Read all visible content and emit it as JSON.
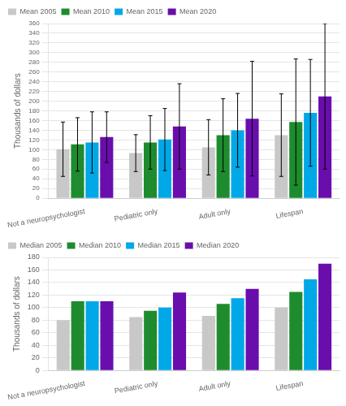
{
  "chart_data": [
    {
      "type": "bar",
      "categories": [
        "Not a neuropsychologist",
        "Pediatric only",
        "Adult only",
        "Lifespan"
      ],
      "series": [
        {
          "name": "Mean 2005",
          "color": "#c8c8c8",
          "values": [
            101,
            93,
            105,
            130
          ],
          "errors": [
            56,
            38,
            57,
            85
          ]
        },
        {
          "name": "Mean 2010",
          "color": "#1e8c2e",
          "values": [
            111,
            115,
            130,
            157
          ],
          "errors": [
            55,
            55,
            75,
            130
          ]
        },
        {
          "name": "Mean 2015",
          "color": "#00a8e8",
          "values": [
            115,
            121,
            140,
            176
          ],
          "errors": [
            63,
            64,
            76,
            110
          ]
        },
        {
          "name": "Mean 2020",
          "color": "#6a0dad",
          "values": [
            126,
            148,
            164,
            210
          ],
          "errors": [
            52,
            88,
            118,
            150
          ]
        }
      ],
      "ylabel": "Thousands of dollars",
      "ylim": [
        0,
        360
      ],
      "yticks": [
        0,
        20,
        40,
        60,
        80,
        100,
        120,
        140,
        160,
        180,
        200,
        220,
        240,
        260,
        280,
        300,
        320,
        340,
        360
      ],
      "grid": true,
      "legend": "upper left"
    },
    {
      "type": "bar",
      "categories": [
        "Not a neuropsychologist",
        "Pediatric only",
        "Adult only",
        "Lifespan"
      ],
      "series": [
        {
          "name": "Median 2005",
          "color": "#c8c8c8",
          "values": [
            80,
            85,
            87,
            100
          ]
        },
        {
          "name": "Median 2010",
          "color": "#1e8c2e",
          "values": [
            110,
            95,
            106,
            125
          ]
        },
        {
          "name": "Median 2015",
          "color": "#00a8e8",
          "values": [
            110,
            100,
            115,
            145
          ]
        },
        {
          "name": "Median 2020",
          "color": "#6a0dad",
          "values": [
            110,
            124,
            130,
            170
          ]
        }
      ],
      "ylabel": "Thousands of dollars",
      "ylim": [
        0,
        180
      ],
      "yticks": [
        0,
        20,
        40,
        60,
        80,
        100,
        120,
        140,
        160,
        180
      ],
      "grid": true,
      "legend": "upper left"
    }
  ]
}
